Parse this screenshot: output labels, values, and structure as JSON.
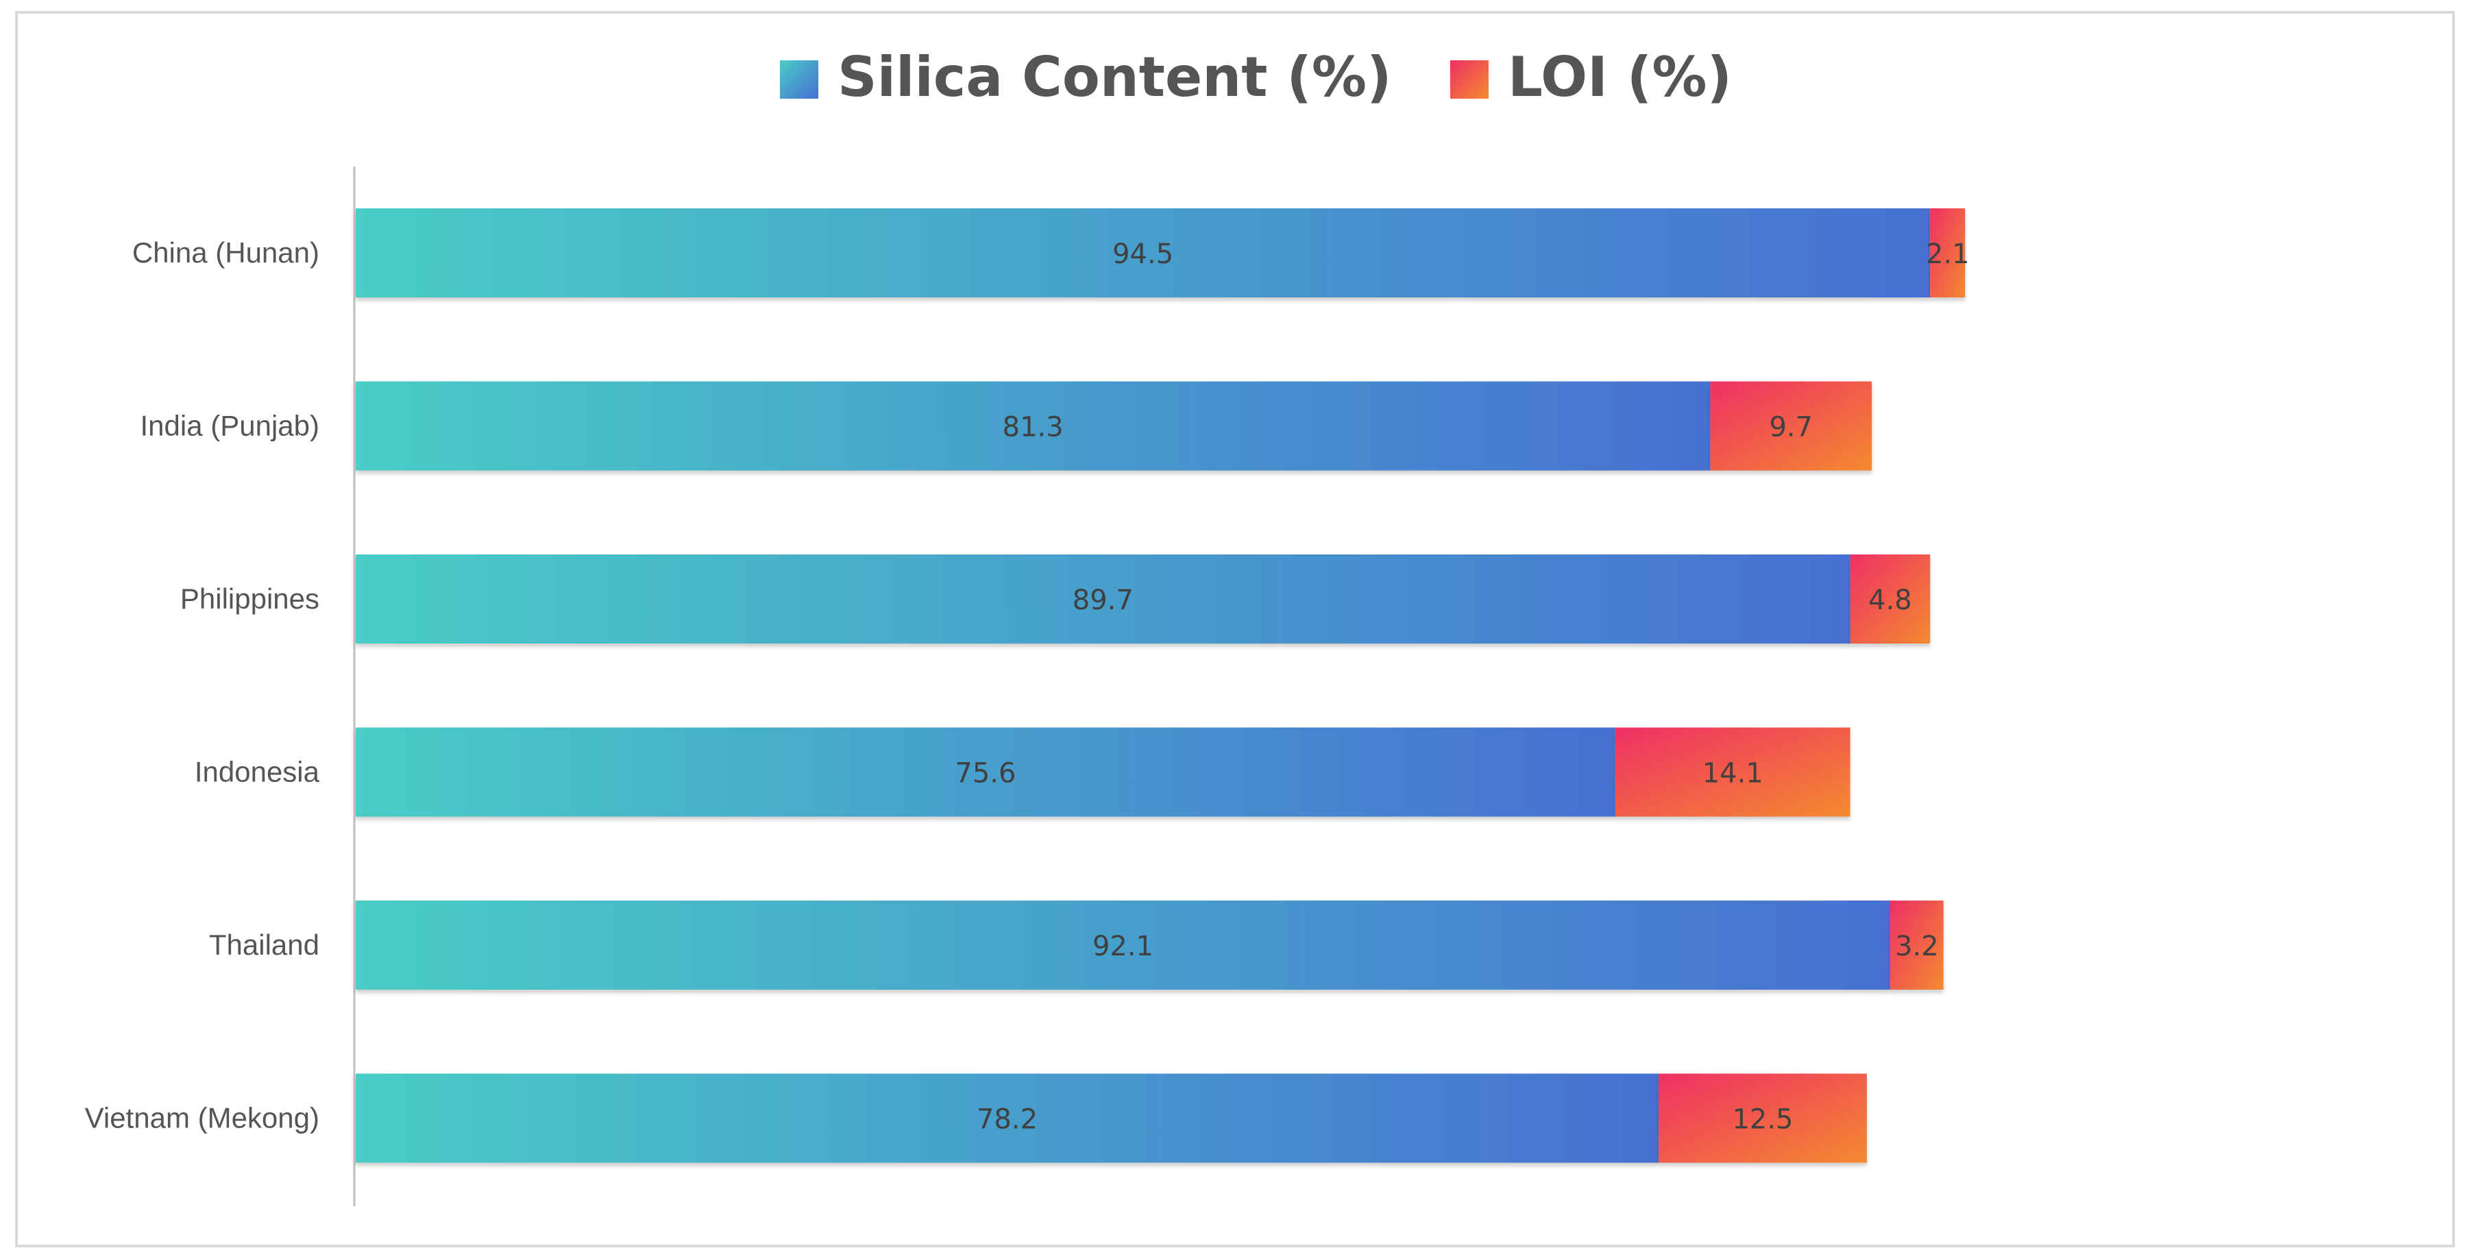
{
  "chart_data": {
    "type": "bar",
    "orientation": "horizontal",
    "stacked": true,
    "title": "",
    "xlabel": "",
    "ylabel": "",
    "xlim": [
      0,
      100
    ],
    "grid": false,
    "legend_position": "top-center",
    "categories": [
      "China (Hunan)",
      "India (Punjab)",
      "Philippines",
      "Indonesia",
      "Thailand",
      "Vietnam (Mekong)"
    ],
    "series": [
      {
        "name": "Silica Content (%)",
        "values": [
          94.5,
          81.3,
          89.7,
          75.6,
          92.1,
          78.2
        ],
        "gradient": [
          "#48cdc6",
          "#4670d2"
        ]
      },
      {
        "name": "LOI (%)",
        "values": [
          2.1,
          9.7,
          4.8,
          14.1,
          3.2,
          12.5
        ],
        "gradient": [
          "#ee3065",
          "#f48a2f"
        ]
      }
    ]
  }
}
